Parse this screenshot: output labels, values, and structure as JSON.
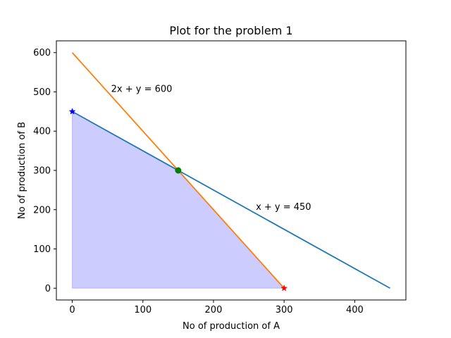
{
  "chart_data": {
    "type": "line",
    "title": "Plot for the problem 1",
    "xlabel": "No of production of A",
    "ylabel": "No of production of B",
    "xlim": [
      -22.5,
      472.5
    ],
    "ylim": [
      -30,
      630
    ],
    "xticks": [
      0,
      100,
      200,
      300,
      400
    ],
    "yticks": [
      0,
      100,
      200,
      300,
      400,
      500,
      600
    ],
    "grid": false,
    "series": [
      {
        "color": "#1f77b4",
        "x": [
          0,
          450
        ],
        "y": [
          450,
          0
        ]
      },
      {
        "color": "#ff7f0e",
        "x": [
          0,
          300
        ],
        "y": [
          600,
          0
        ]
      }
    ],
    "feasible_region": {
      "color": "#0000ff",
      "opacity": 0.2,
      "vertices": [
        [
          0,
          0
        ],
        [
          0,
          450
        ],
        [
          150,
          300
        ],
        [
          300,
          0
        ]
      ]
    },
    "markers": [
      {
        "x": 0,
        "y": 450,
        "shape": "star",
        "color": "#0000ff"
      },
      {
        "x": 300,
        "y": 0,
        "shape": "star",
        "color": "#ff0000"
      },
      {
        "x": 150,
        "y": 300,
        "shape": "circle",
        "color": "#008000"
      }
    ],
    "annotations": [
      {
        "text": "2x + y = 600",
        "x": 55,
        "y": 500
      },
      {
        "text": "x + y = 450",
        "x": 260,
        "y": 200
      }
    ]
  }
}
